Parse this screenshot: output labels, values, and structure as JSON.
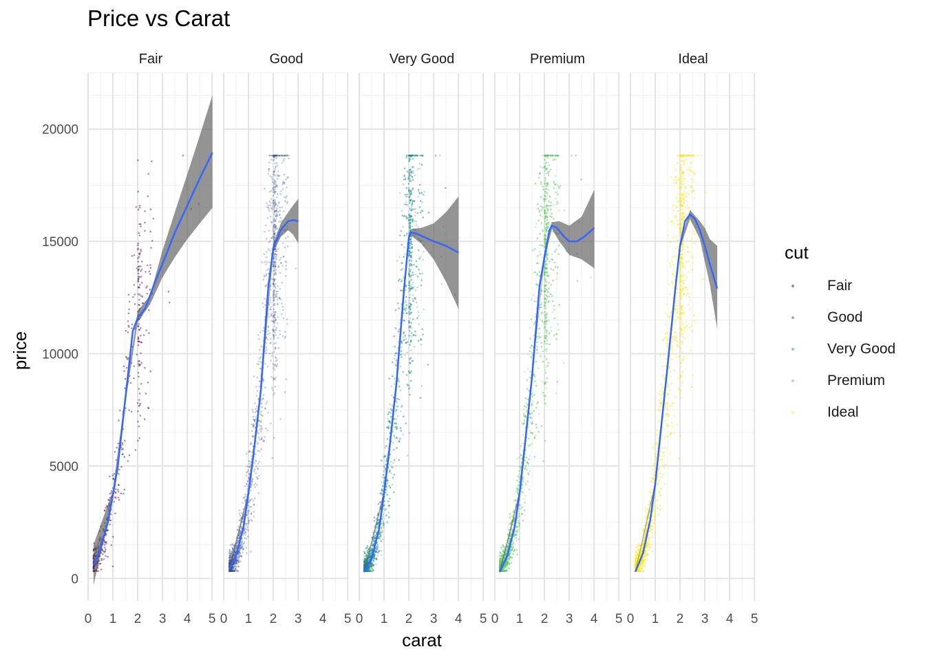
{
  "chart_data": {
    "type": "scatter",
    "title": "Price vs Carat",
    "xlabel": "carat",
    "ylabel": "price",
    "xlim": [
      0,
      5.05
    ],
    "ylim": [
      -1000,
      22500
    ],
    "xticks": [
      0,
      1,
      2,
      3,
      4,
      5
    ],
    "yticks": [
      0,
      5000,
      10000,
      15000,
      20000
    ],
    "grid": true,
    "facet_by": "cut",
    "legend": {
      "title": "cut",
      "position": "right"
    },
    "series": [
      {
        "name": "Fair",
        "color": "#440154",
        "x_max": 5.01,
        "smooth": {
          "x": [
            0.22,
            0.5,
            0.8,
            1.0,
            1.2,
            1.5,
            1.8,
            2.0,
            2.3,
            2.7,
            3.0,
            3.5,
            4.0,
            4.5,
            5.01
          ],
          "y": [
            600,
            1300,
            2500,
            3700,
            5000,
            8000,
            11000,
            11600,
            12000,
            13200,
            14000,
            15400,
            16600,
            17800,
            18950
          ]
        },
        "band": {
          "x": [
            0.22,
            1.0,
            1.5,
            2.0,
            2.5,
            3.0,
            3.5,
            4.0,
            4.5,
            5.01
          ],
          "lo": [
            -300,
            3500,
            7800,
            11400,
            12200,
            13400,
            14300,
            15100,
            15800,
            16500
          ],
          "hi": [
            1500,
            3900,
            8200,
            11900,
            12600,
            14600,
            16300,
            18000,
            19700,
            21500
          ]
        }
      },
      {
        "name": "Good",
        "color": "#3b528b",
        "x_max": 3.01,
        "smooth": {
          "x": [
            0.23,
            0.5,
            0.8,
            1.0,
            1.2,
            1.5,
            1.8,
            2.0,
            2.3,
            2.6,
            2.8,
            3.01
          ],
          "y": [
            400,
            1000,
            2300,
            3800,
            5500,
            8400,
            13000,
            14700,
            15500,
            15900,
            15950,
            15900
          ]
        },
        "band": {
          "x": [
            0.23,
            1.0,
            1.5,
            2.0,
            2.3,
            2.6,
            2.8,
            3.01
          ],
          "lo": [
            250,
            3700,
            8200,
            14500,
            15200,
            15500,
            15300,
            14900
          ],
          "hi": [
            550,
            3900,
            8600,
            14900,
            15800,
            16300,
            16600,
            16900
          ]
        }
      },
      {
        "name": "Very Good",
        "color": "#21908c",
        "x_max": 4.0,
        "smooth": {
          "x": [
            0.2,
            0.5,
            0.8,
            1.0,
            1.2,
            1.5,
            1.8,
            2.0,
            2.1,
            2.3,
            2.6,
            3.0,
            3.5,
            4.0
          ],
          "y": [
            300,
            900,
            2200,
            3800,
            5600,
            8700,
            12800,
            15200,
            15400,
            15350,
            15200,
            15000,
            14800,
            14500
          ]
        },
        "band": {
          "x": [
            0.2,
            1.0,
            1.5,
            2.0,
            2.1,
            2.5,
            3.0,
            3.5,
            4.0
          ],
          "lo": [
            200,
            3700,
            8600,
            15100,
            15250,
            14900,
            14200,
            13200,
            12000
          ],
          "hi": [
            400,
            3900,
            8800,
            15300,
            15550,
            15600,
            15800,
            16300,
            17000
          ]
        }
      },
      {
        "name": "Premium",
        "color": "#5dc863",
        "x_max": 4.01,
        "smooth": {
          "x": [
            0.2,
            0.5,
            0.8,
            1.0,
            1.2,
            1.5,
            1.8,
            2.0,
            2.2,
            2.3,
            2.5,
            2.8,
            3.0,
            3.3,
            3.6,
            4.01
          ],
          "y": [
            300,
            1000,
            2300,
            3800,
            5800,
            9000,
            13000,
            14300,
            15500,
            15700,
            15600,
            15200,
            15000,
            15000,
            15200,
            15600
          ]
        },
        "band": {
          "x": [
            0.2,
            1.0,
            1.5,
            2.0,
            2.3,
            2.6,
            3.0,
            3.5,
            4.01
          ],
          "lo": [
            200,
            3700,
            8900,
            14200,
            15550,
            15000,
            14400,
            14200,
            13800
          ],
          "hi": [
            400,
            3900,
            9100,
            14400,
            15850,
            15900,
            15700,
            16100,
            17300
          ]
        }
      },
      {
        "name": "Ideal",
        "color": "#fde725",
        "x_max": 3.5,
        "smooth": {
          "x": [
            0.2,
            0.5,
            0.8,
            1.0,
            1.2,
            1.5,
            1.8,
            2.0,
            2.2,
            2.4,
            2.6,
            2.8,
            3.0,
            3.2,
            3.5
          ],
          "y": [
            300,
            1100,
            2600,
            4200,
            6300,
            9500,
            12800,
            14800,
            15900,
            16200,
            16000,
            15500,
            14800,
            14000,
            12900
          ]
        },
        "band": {
          "x": [
            0.2,
            1.0,
            1.5,
            2.0,
            2.4,
            2.8,
            3.0,
            3.2,
            3.5
          ],
          "lo": [
            250,
            4100,
            9400,
            14700,
            16000,
            15100,
            14100,
            13100,
            11100
          ],
          "hi": [
            350,
            4300,
            9600,
            14900,
            16400,
            15900,
            15600,
            15100,
            14800
          ]
        }
      }
    ]
  }
}
